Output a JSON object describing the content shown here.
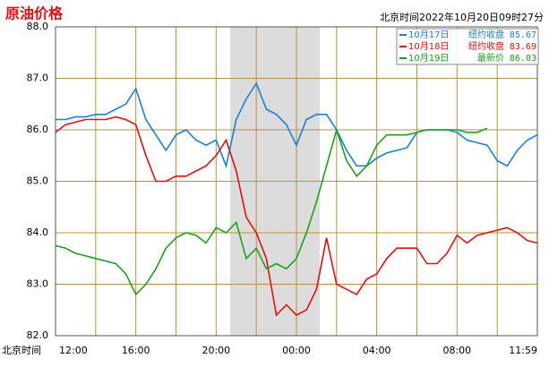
{
  "chart_data": {
    "type": "line",
    "title": "原油价格",
    "subtitle": "北京时间2022年10月20日09时27分",
    "x_label": "北京时间",
    "categories": [
      "12:00",
      null,
      null,
      null,
      null,
      null,
      null,
      null,
      "16:00",
      null,
      null,
      null,
      null,
      null,
      null,
      null,
      "20:00",
      null,
      null,
      null,
      null,
      null,
      null,
      null,
      "00:00",
      null,
      null,
      null,
      null,
      null,
      null,
      null,
      "04:00",
      null,
      null,
      null,
      null,
      null,
      null,
      null,
      "08:00",
      null,
      null,
      null,
      null,
      null,
      null,
      null,
      "11:59"
    ],
    "ylim": [
      82,
      88
    ],
    "yticks": [
      {
        "value": 82,
        "label": "82.0"
      },
      {
        "value": 83,
        "label": "83.0"
      },
      {
        "value": 84,
        "label": "84.0"
      },
      {
        "value": 85,
        "label": "85.0"
      },
      {
        "value": 86,
        "label": "86.0"
      },
      {
        "value": 87,
        "label": "87.0"
      },
      {
        "value": 88,
        "label": "88.0"
      }
    ],
    "grid": true,
    "legend": "upper right",
    "series": [
      {
        "name": "10月17日",
        "legend_label": "纽约收盘",
        "legend_value": "85.67",
        "color": "#1a7fd6",
        "values": [
          86.2,
          86.2,
          86.25,
          86.25,
          86.3,
          86.3,
          86.4,
          86.5,
          86.8,
          86.2,
          85.9,
          85.6,
          85.9,
          86.0,
          85.8,
          85.7,
          85.8,
          85.3,
          86.2,
          86.6,
          86.9,
          86.4,
          86.3,
          86.1,
          85.7,
          86.2,
          86.3,
          86.3,
          86.0,
          85.6,
          85.3,
          85.3,
          85.45,
          85.55,
          85.6,
          85.65,
          85.95,
          86.0,
          86.0,
          86.0,
          85.95,
          85.8,
          85.75,
          85.7,
          85.4,
          85.3,
          85.6,
          85.8,
          85.9
        ]
      },
      {
        "name": "10月18日",
        "legend_label": "纽约收盘",
        "legend_value": "83.69",
        "color": "#e01010",
        "values": [
          85.95,
          86.1,
          86.15,
          86.2,
          86.2,
          86.2,
          86.25,
          86.2,
          86.1,
          85.5,
          85.0,
          85.0,
          85.1,
          85.1,
          85.2,
          85.3,
          85.5,
          85.8,
          85.2,
          84.3,
          84.0,
          83.5,
          82.4,
          82.6,
          82.4,
          82.5,
          82.9,
          83.9,
          83.0,
          82.9,
          82.8,
          83.1,
          83.2,
          83.5,
          83.7,
          83.7,
          83.7,
          83.4,
          83.4,
          83.6,
          83.95,
          83.8,
          83.95,
          84.0,
          84.05,
          84.1,
          84.0,
          83.85,
          83.8
        ]
      },
      {
        "name": "10月19日",
        "legend_label": "最新价",
        "legend_value": "86.03",
        "color": "#1aa01a",
        "values": [
          83.75,
          83.7,
          83.6,
          83.55,
          83.5,
          83.45,
          83.4,
          83.2,
          82.8,
          83.0,
          83.3,
          83.7,
          83.9,
          84.0,
          83.95,
          83.8,
          84.1,
          84.0,
          84.2,
          83.5,
          83.7,
          83.3,
          83.4,
          83.3,
          83.5,
          84.0,
          84.6,
          85.3,
          86.0,
          85.4,
          85.1,
          85.3,
          85.7,
          85.9,
          85.9,
          85.9,
          85.95,
          86.0,
          86.0,
          86.0,
          86.0,
          85.95,
          85.95,
          86.03,
          null,
          null,
          null,
          null,
          null
        ]
      }
    ]
  }
}
